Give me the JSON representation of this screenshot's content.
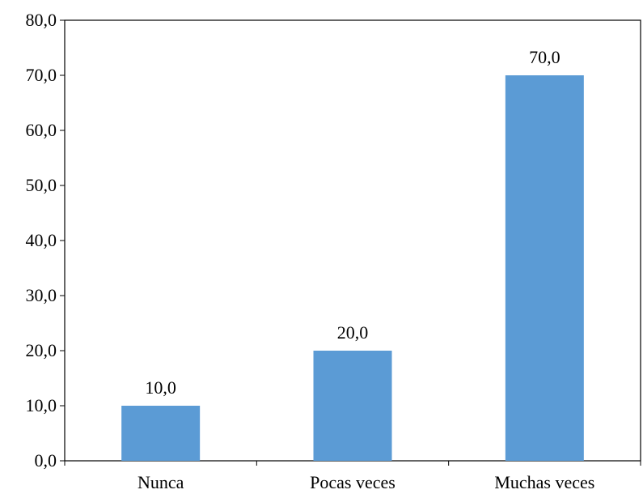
{
  "chart_data": {
    "type": "bar",
    "categories": [
      "Nunca",
      "Pocas veces",
      "Muchas veces"
    ],
    "values": [
      10.0,
      20.0,
      70.0
    ],
    "value_labels": [
      "10,0",
      "20,0",
      "70,0"
    ],
    "yticks": [
      0,
      10,
      20,
      30,
      40,
      50,
      60,
      70,
      80
    ],
    "ytick_labels": [
      "0,0",
      "10,0",
      "20,0",
      "30,0",
      "40,0",
      "50,0",
      "60,0",
      "70,0",
      "80,0"
    ],
    "ylim": [
      0,
      80
    ],
    "title": "",
    "xlabel": "",
    "ylabel": "",
    "grid": false,
    "bar_color": "#5b9bd5",
    "axis_color": "#000000"
  }
}
